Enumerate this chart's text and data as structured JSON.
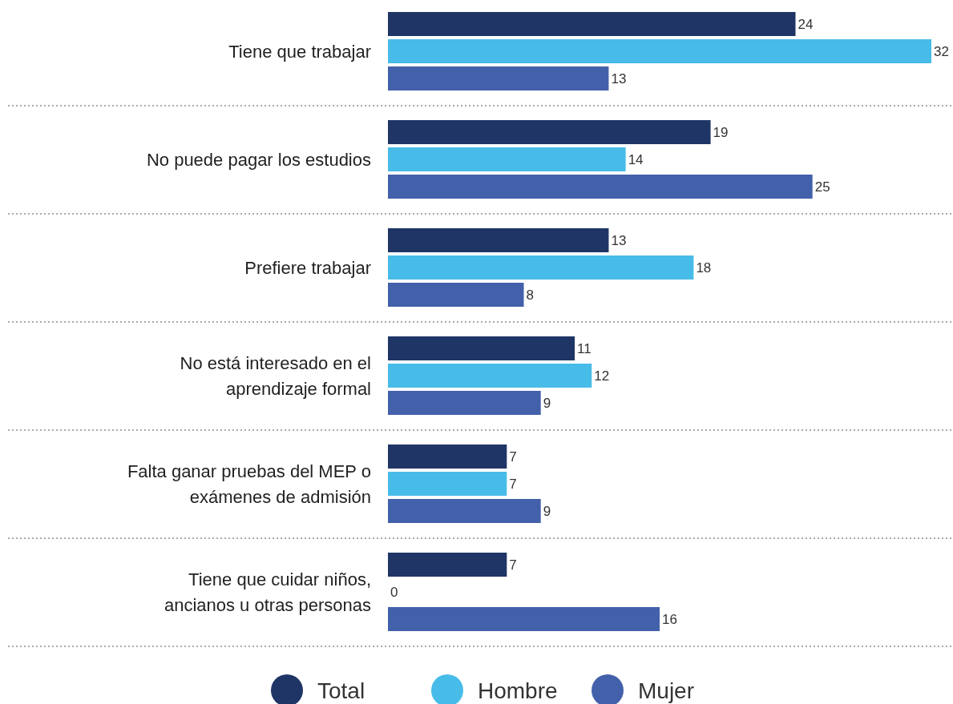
{
  "chart_data": {
    "type": "bar",
    "orientation": "horizontal",
    "categories": [
      "Tiene que trabajar",
      "No puede pagar los estudios",
      "Prefiere trabajar",
      "No está interesado en el aprendizaje formal",
      "Falta ganar pruebas del MEP o exámenes de admisión",
      "Tiene que cuidar niños, ancianos u otras personas"
    ],
    "series": [
      {
        "name": "Total",
        "color": "#1f3566",
        "values": [
          24,
          19,
          13,
          11,
          7,
          7
        ]
      },
      {
        "name": "Hombre",
        "color": "#47bce8",
        "values": [
          32,
          14,
          18,
          12,
          7,
          0
        ]
      },
      {
        "name": "Mujer",
        "color": "#4360aa",
        "values": [
          13,
          25,
          8,
          9,
          9,
          16
        ]
      }
    ],
    "data_labels": true,
    "legend": "bottom"
  }
}
